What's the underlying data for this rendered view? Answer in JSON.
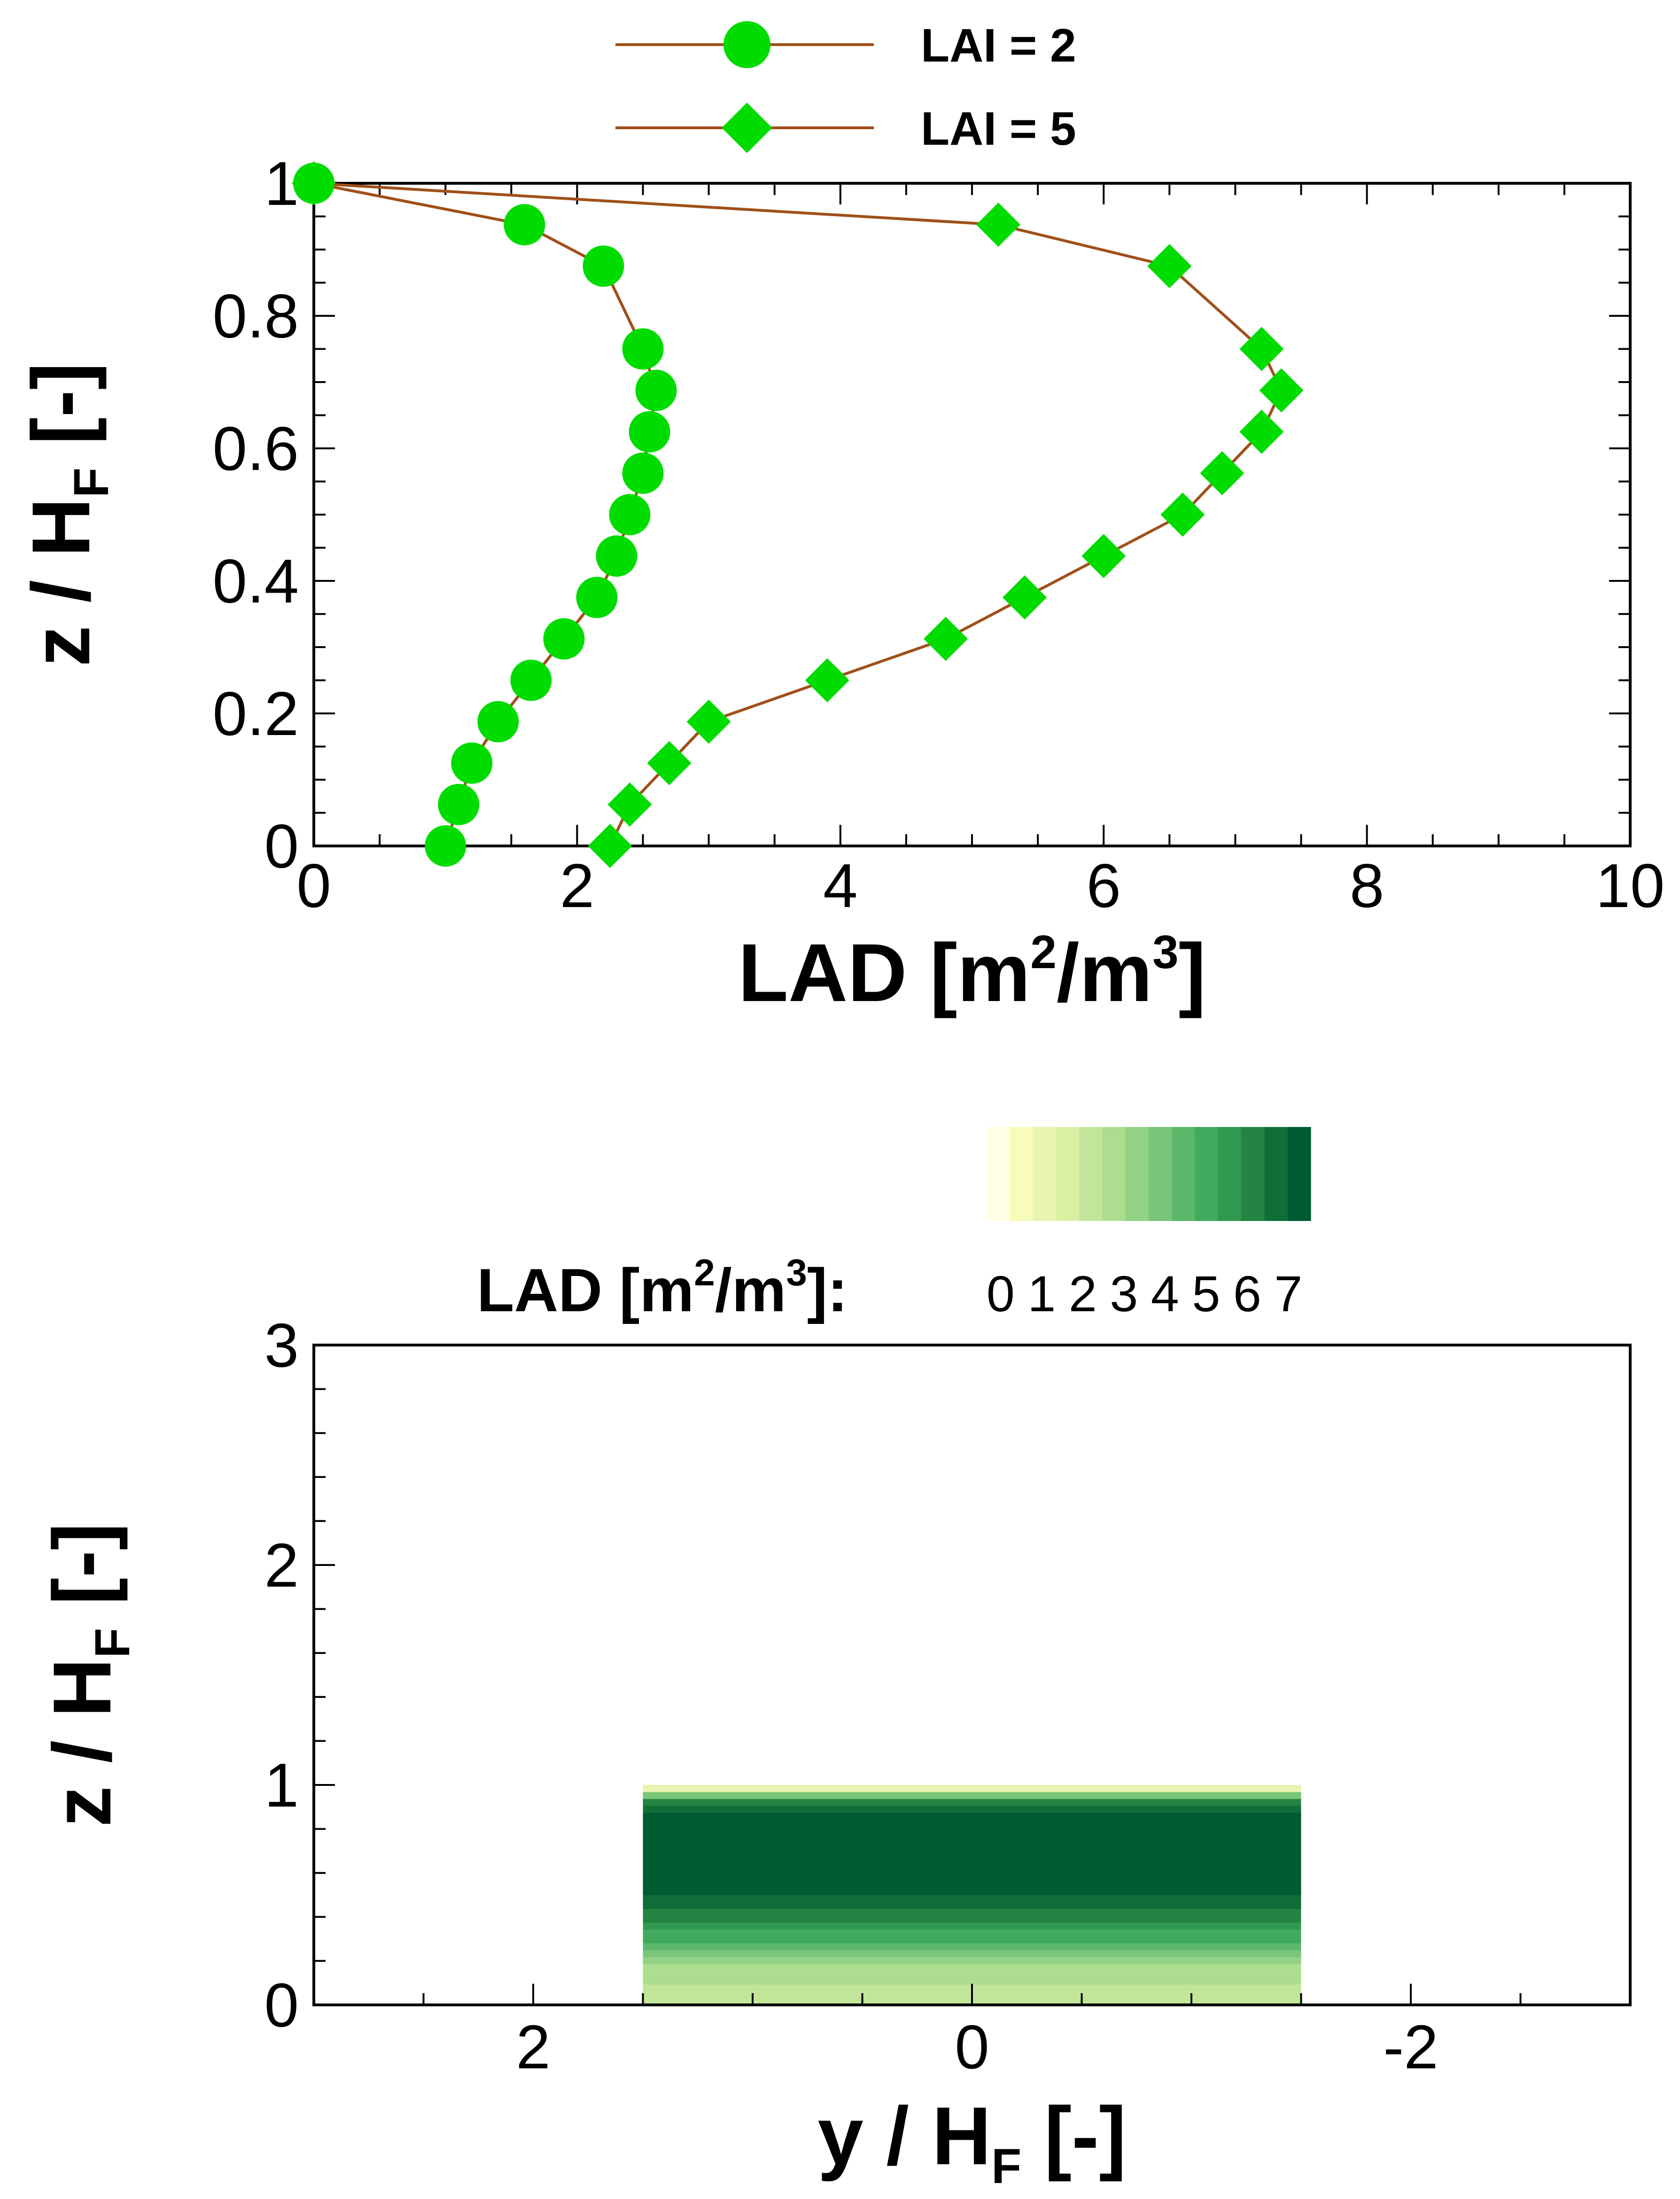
{
  "chart_data": [
    {
      "type": "line",
      "xlabel": "LAD [m²/m³]",
      "xlabel_parts": {
        "main": "LAD [m",
        "sup1": "2",
        "mid": "/m",
        "sup2": "3",
        "end": "]"
      },
      "ylabel": "z / HF [-]",
      "ylabel_parts": {
        "main": "z / H",
        "sub": "F",
        "end": " [-]"
      },
      "xlim": [
        0,
        10
      ],
      "ylim": [
        0,
        1
      ],
      "xticks": [
        0,
        2,
        4,
        6,
        8,
        10
      ],
      "yticks": [
        0,
        0.2,
        0.4,
        0.6,
        0.8,
        1
      ],
      "xtick_labels": [
        "0",
        "2",
        "4",
        "6",
        "8",
        "10"
      ],
      "ytick_labels": [
        "0",
        "0.2",
        "0.4",
        "0.6",
        "0.8",
        "1"
      ],
      "grid": false,
      "legend_position": "top",
      "line_color": "#a0501a",
      "marker_color": "#00dc00",
      "series": [
        {
          "name": "LAI = 2",
          "marker": "circle",
          "x": [
            1.0,
            1.1,
            1.2,
            1.4,
            1.65,
            1.9,
            2.15,
            2.3,
            2.4,
            2.5,
            2.55,
            2.6,
            2.5,
            2.2,
            1.6,
            0.0
          ],
          "y": [
            0.0,
            0.0625,
            0.125,
            0.1875,
            0.25,
            0.3125,
            0.375,
            0.4375,
            0.5,
            0.5625,
            0.625,
            0.6875,
            0.75,
            0.875,
            0.9375,
            1.0
          ]
        },
        {
          "name": "LAI = 5",
          "marker": "diamond",
          "x": [
            2.25,
            2.4,
            2.7,
            3.0,
            3.9,
            4.8,
            5.4,
            6.0,
            6.6,
            6.9,
            7.2,
            7.35,
            7.2,
            6.5,
            5.2,
            0.0
          ],
          "y": [
            0.0,
            0.0625,
            0.125,
            0.1875,
            0.25,
            0.3125,
            0.375,
            0.4375,
            0.5,
            0.5625,
            0.625,
            0.6875,
            0.75,
            0.875,
            0.9375,
            1.0
          ]
        }
      ]
    },
    {
      "type": "heatmap",
      "xlabel": "y / HF [-]",
      "xlabel_parts": {
        "main": "y / H",
        "sub": "F",
        "end": " [-]"
      },
      "ylabel": "z / HF [-]",
      "ylabel_parts": {
        "main": "z / H",
        "sub": "F",
        "end": " [-]"
      },
      "xlim": [
        3,
        -3
      ],
      "ylim": [
        0,
        3
      ],
      "xticks": [
        2,
        0,
        -2
      ],
      "yticks": [
        0,
        1,
        2,
        3
      ],
      "xtick_labels": [
        "2",
        "0",
        "-2"
      ],
      "ytick_labels": [
        "0",
        "1",
        "2",
        "3"
      ],
      "grid": false,
      "canopy_extent_y": [
        1.5,
        -1.5
      ],
      "canopy_extent_z": [
        0,
        1
      ],
      "profile_source": "LAI = 5",
      "colorbar": {
        "title_parts": {
          "main": "LAD [m",
          "sup1": "2",
          "mid": "/m",
          "sup2": "3",
          "end": "]:"
        },
        "tick_labels": [
          "0",
          "1",
          "2",
          "3",
          "4",
          "5",
          "6",
          "7"
        ],
        "range": [
          0,
          7
        ],
        "colors": [
          "#ffffe5",
          "#f7fcb9",
          "#e8f5b0",
          "#d9f0a3",
          "#c2e699",
          "#addd8e",
          "#93d284",
          "#78c679",
          "#5bb86a",
          "#41ab5d",
          "#2f9a4f",
          "#238443",
          "#106e38",
          "#005a32"
        ]
      }
    }
  ]
}
